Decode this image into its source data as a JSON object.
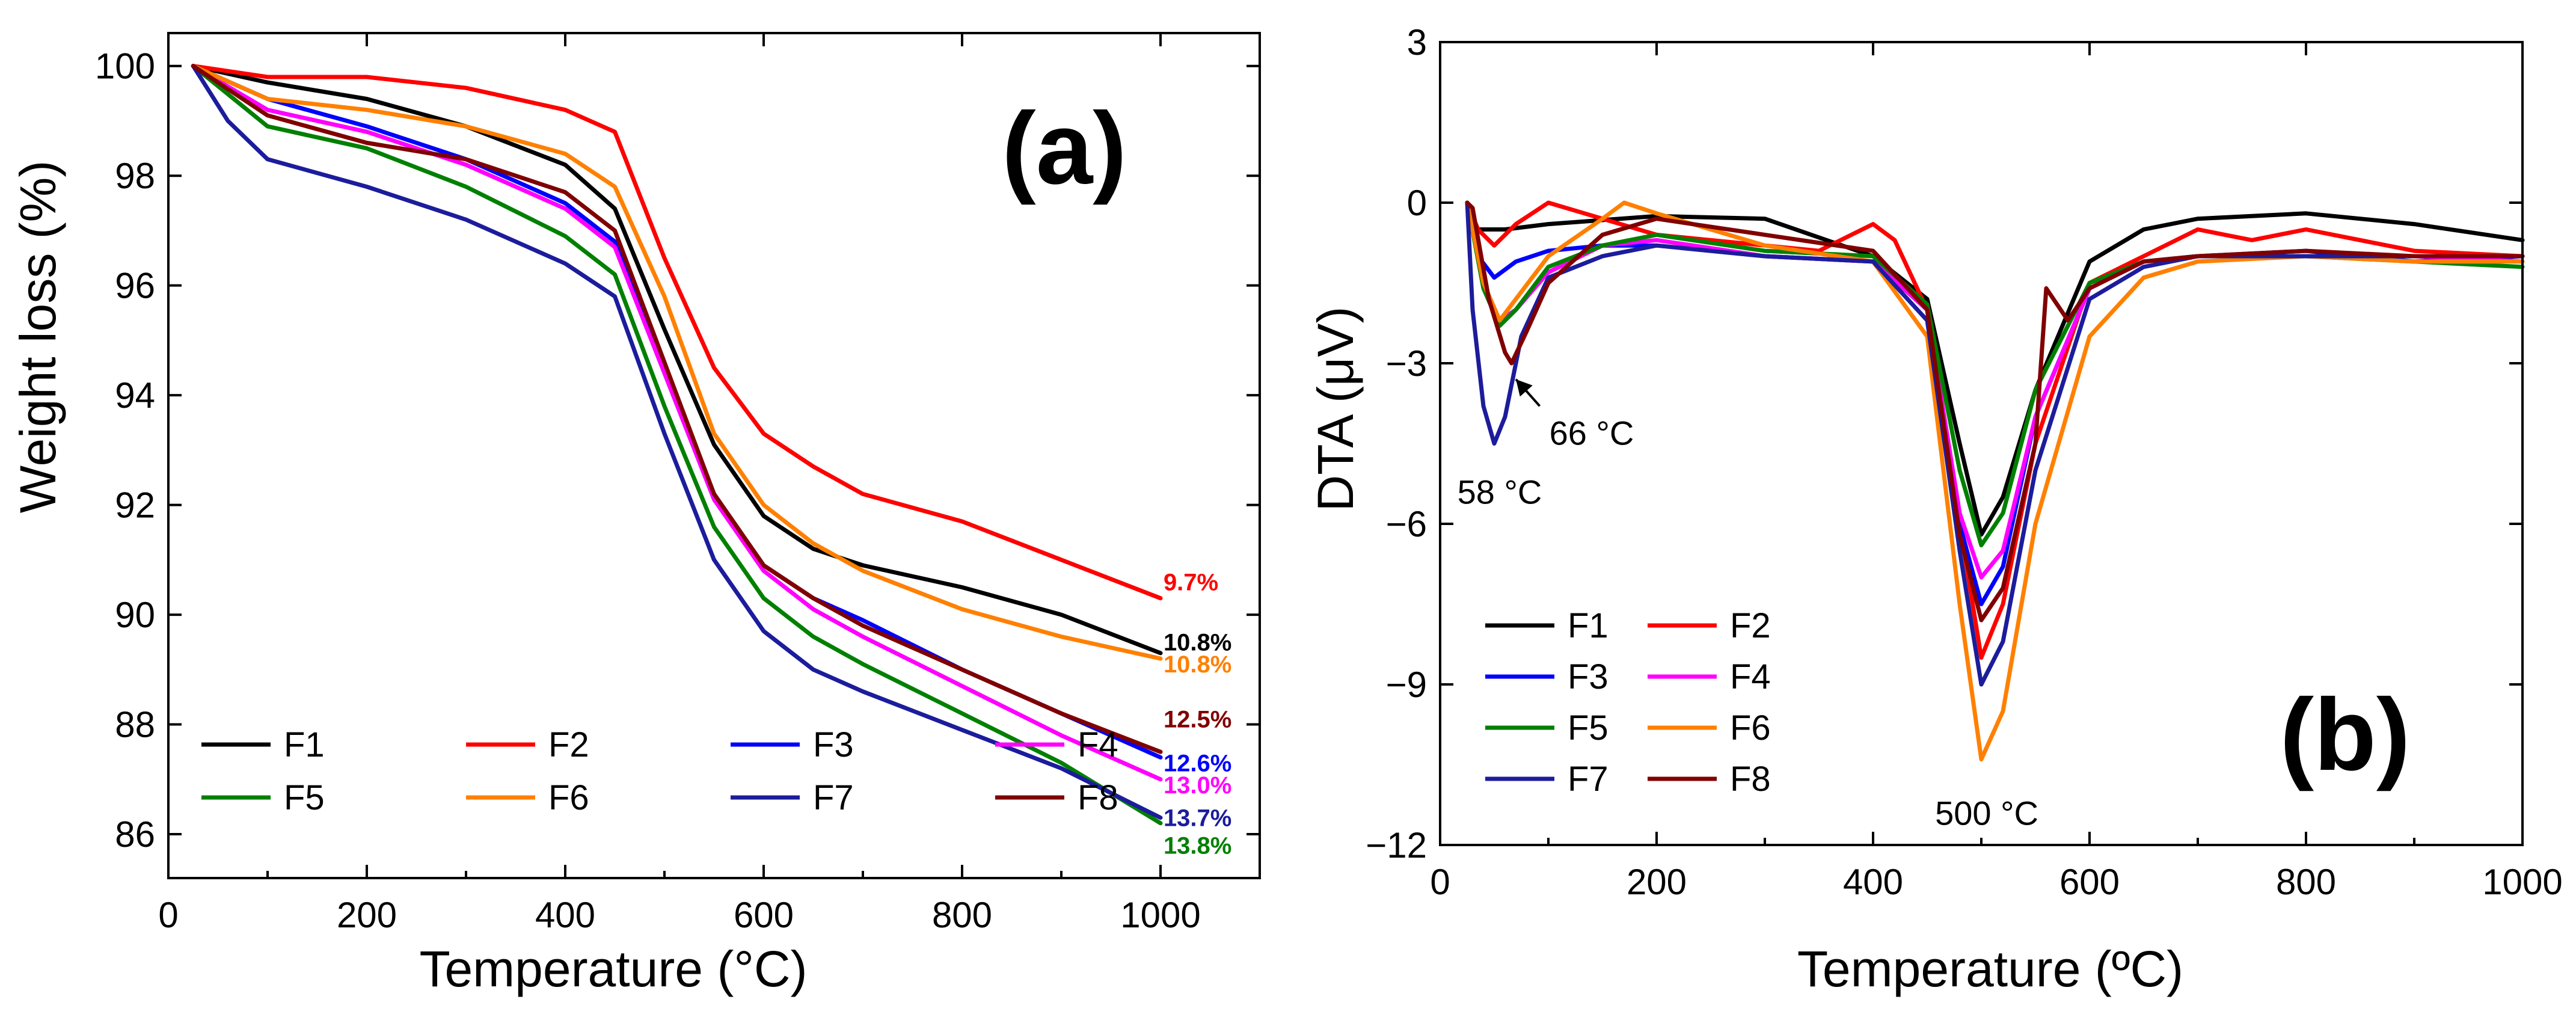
{
  "colors": {
    "F1": "#000000",
    "F2": "#ff0000",
    "F3": "#0000ff",
    "F4": "#ff00ff",
    "F5": "#008000",
    "F6": "#ff8000",
    "F7": "#1c1c9c",
    "F8": "#800000",
    "axis": "#000000"
  },
  "chart_data": [
    {
      "type": "line",
      "panel_label": "(a)",
      "xlabel": "Temperature (°C)",
      "ylabel": "Weight loss (%)",
      "xlim": [
        0,
        1100
      ],
      "ylim": [
        85.2,
        100.6
      ],
      "xticks": [
        0,
        200,
        400,
        600,
        800,
        1000
      ],
      "yticks": [
        86,
        88,
        90,
        92,
        94,
        96,
        98,
        100
      ],
      "legend_position": "bottom-left",
      "legend_rows": [
        [
          "F1",
          "F2",
          "F3",
          "F4"
        ],
        [
          "F5",
          "F6",
          "F7",
          "F8"
        ]
      ],
      "series": [
        {
          "name": "F1",
          "x": [
            25,
            100,
            200,
            300,
            400,
            450,
            500,
            550,
            600,
            650,
            700,
            800,
            900,
            1000
          ],
          "values": [
            100,
            99.7,
            99.4,
            98.9,
            98.2,
            97.4,
            95.2,
            93.1,
            91.8,
            91.2,
            90.9,
            90.5,
            90.0,
            89.3
          ]
        },
        {
          "name": "F2",
          "x": [
            25,
            100,
            200,
            300,
            400,
            450,
            500,
            550,
            600,
            650,
            700,
            800,
            900,
            1000
          ],
          "values": [
            100,
            99.8,
            99.8,
            99.6,
            99.2,
            98.8,
            96.5,
            94.5,
            93.3,
            92.7,
            92.2,
            91.7,
            91.0,
            90.3
          ]
        },
        {
          "name": "F3",
          "x": [
            25,
            100,
            200,
            300,
            400,
            450,
            500,
            550,
            600,
            650,
            700,
            800,
            900,
            1000
          ],
          "values": [
            100,
            99.4,
            98.9,
            98.3,
            97.5,
            96.8,
            94.5,
            92.2,
            90.9,
            90.3,
            89.9,
            89.0,
            88.2,
            87.4
          ]
        },
        {
          "name": "F4",
          "x": [
            25,
            100,
            200,
            300,
            400,
            450,
            500,
            550,
            600,
            650,
            700,
            800,
            900,
            1000
          ],
          "values": [
            100,
            99.2,
            98.8,
            98.2,
            97.4,
            96.7,
            94.4,
            92.1,
            90.8,
            90.1,
            89.6,
            88.7,
            87.8,
            87.0
          ]
        },
        {
          "name": "F5",
          "x": [
            25,
            100,
            200,
            300,
            400,
            450,
            500,
            550,
            600,
            650,
            700,
            800,
            900,
            1000
          ],
          "values": [
            100,
            98.9,
            98.5,
            97.8,
            96.9,
            96.2,
            93.8,
            91.6,
            90.3,
            89.6,
            89.1,
            88.2,
            87.3,
            86.2
          ]
        },
        {
          "name": "F6",
          "x": [
            25,
            100,
            200,
            300,
            400,
            450,
            500,
            550,
            600,
            650,
            700,
            800,
            900,
            1000
          ],
          "values": [
            100,
            99.4,
            99.2,
            98.9,
            98.4,
            97.8,
            95.8,
            93.3,
            92.0,
            91.3,
            90.8,
            90.1,
            89.6,
            89.2
          ]
        },
        {
          "name": "F7",
          "x": [
            25,
            60,
            100,
            200,
            300,
            400,
            450,
            500,
            550,
            600,
            650,
            700,
            800,
            900,
            1000
          ],
          "values": [
            100,
            99.0,
            98.3,
            97.8,
            97.2,
            96.4,
            95.8,
            93.3,
            91.0,
            89.7,
            89.0,
            88.6,
            87.9,
            87.2,
            86.3
          ]
        },
        {
          "name": "F8",
          "x": [
            25,
            100,
            200,
            300,
            400,
            450,
            500,
            550,
            600,
            650,
            700,
            800,
            900,
            1000
          ],
          "values": [
            100,
            99.1,
            98.6,
            98.3,
            97.7,
            97.0,
            94.6,
            92.2,
            90.9,
            90.3,
            89.8,
            89.0,
            88.2,
            87.5
          ]
        }
      ],
      "annotations": [
        {
          "text": "9.7%",
          "series": "F2",
          "x": 1003,
          "y": 90.6
        },
        {
          "text": "10.8%",
          "series": "F1",
          "x": 1003,
          "y": 89.5
        },
        {
          "text": "10.8%",
          "series": "F6",
          "x": 1003,
          "y": 89.1
        },
        {
          "text": "12.5%",
          "series": "F8",
          "x": 1003,
          "y": 88.1
        },
        {
          "text": "12.6%",
          "series": "F3",
          "x": 1003,
          "y": 87.3
        },
        {
          "text": "13.0%",
          "series": "F4",
          "x": 1003,
          "y": 86.9
        },
        {
          "text": "13.7%",
          "series": "F7",
          "x": 1003,
          "y": 86.3
        },
        {
          "text": "13.8%",
          "series": "F5",
          "x": 1003,
          "y": 85.8
        }
      ]
    },
    {
      "type": "line",
      "panel_label": "(b)",
      "xlabel": "Temperature (ºC)",
      "ylabel": "DTA (μV)",
      "xlim": [
        0,
        1000
      ],
      "ylim": [
        -12,
        3
      ],
      "xticks": [
        0,
        200,
        400,
        600,
        800,
        1000
      ],
      "yticks": [
        3,
        0,
        -3,
        -6,
        -9,
        -12
      ],
      "legend_position": "bottom-left",
      "legend_rows": [
        [
          "F1",
          "F2"
        ],
        [
          "F3",
          "F4"
        ],
        [
          "F5",
          "F6"
        ],
        [
          "F7",
          "F8"
        ]
      ],
      "series": [
        {
          "name": "F1",
          "x": [
            25,
            35,
            60,
            100,
            200,
            300,
            400,
            450,
            480,
            500,
            520,
            550,
            600,
            650,
            700,
            800,
            900,
            1000
          ],
          "values": [
            0,
            -0.5,
            -0.5,
            -0.4,
            -0.25,
            -0.3,
            -1.0,
            -1.8,
            -4.5,
            -6.2,
            -5.5,
            -3.5,
            -1.1,
            -0.5,
            -0.3,
            -0.2,
            -0.4,
            -0.7
          ]
        },
        {
          "name": "F2",
          "x": [
            25,
            35,
            50,
            70,
            100,
            150,
            200,
            300,
            350,
            380,
            400,
            420,
            450,
            480,
            500,
            520,
            550,
            600,
            650,
            700,
            750,
            800,
            900,
            1000
          ],
          "values": [
            0,
            -0.5,
            -0.8,
            -0.4,
            0,
            -0.3,
            -0.6,
            -0.8,
            -0.9,
            -0.6,
            -0.4,
            -0.7,
            -2.0,
            -6.0,
            -8.5,
            -7.5,
            -4.5,
            -1.5,
            -1.0,
            -0.5,
            -0.7,
            -0.5,
            -0.9,
            -1.0
          ]
        },
        {
          "name": "F3",
          "x": [
            25,
            35,
            50,
            70,
            100,
            150,
            200,
            300,
            400,
            450,
            480,
            500,
            520,
            550,
            600,
            650,
            700,
            800,
            900,
            1000
          ],
          "values": [
            0,
            -1.0,
            -1.4,
            -1.1,
            -0.9,
            -0.8,
            -0.8,
            -1.0,
            -1.1,
            -2.0,
            -6.0,
            -7.5,
            -6.8,
            -4.0,
            -1.6,
            -1.1,
            -1.0,
            -0.9,
            -1.1,
            -1.0
          ]
        },
        {
          "name": "F4",
          "x": [
            25,
            40,
            55,
            70,
            100,
            150,
            200,
            300,
            400,
            450,
            480,
            500,
            520,
            550,
            600,
            650,
            700,
            800,
            900,
            1000
          ],
          "values": [
            0,
            -1.5,
            -2.2,
            -2.0,
            -1.3,
            -0.8,
            -0.7,
            -1.0,
            -1.1,
            -2.0,
            -5.8,
            -7.0,
            -6.5,
            -4.0,
            -1.6,
            -1.1,
            -1.0,
            -1.0,
            -1.0,
            -1.1
          ]
        },
        {
          "name": "F5",
          "x": [
            25,
            40,
            55,
            70,
            100,
            150,
            200,
            300,
            400,
            450,
            480,
            500,
            520,
            550,
            600,
            650,
            700,
            800,
            900,
            1000
          ],
          "values": [
            0,
            -1.6,
            -2.3,
            -2.0,
            -1.2,
            -0.8,
            -0.6,
            -0.9,
            -1.0,
            -1.9,
            -5.0,
            -6.4,
            -5.8,
            -3.5,
            -1.5,
            -1.1,
            -1.0,
            -1.0,
            -1.1,
            -1.2
          ]
        },
        {
          "name": "F6",
          "x": [
            25,
            40,
            55,
            70,
            100,
            150,
            170,
            200,
            300,
            400,
            450,
            480,
            500,
            520,
            550,
            600,
            650,
            700,
            800,
            900,
            1000
          ],
          "values": [
            0,
            -1.5,
            -2.2,
            -1.8,
            -1.0,
            -0.3,
            0,
            -0.2,
            -0.8,
            -1.1,
            -2.5,
            -7.5,
            -10.4,
            -9.5,
            -6.0,
            -2.5,
            -1.4,
            -1.1,
            -1.0,
            -1.1,
            -1.1
          ]
        },
        {
          "name": "F7",
          "x": [
            25,
            30,
            40,
            50,
            60,
            75,
            100,
            150,
            200,
            300,
            400,
            450,
            480,
            500,
            520,
            550,
            600,
            650,
            700,
            800,
            900,
            1000
          ],
          "values": [
            0,
            -2.0,
            -3.8,
            -4.5,
            -4.0,
            -2.5,
            -1.4,
            -1.0,
            -0.8,
            -1.0,
            -1.1,
            -2.2,
            -6.5,
            -9.0,
            -8.2,
            -5.0,
            -1.8,
            -1.2,
            -1.0,
            -1.0,
            -1.0,
            -1.0
          ]
        },
        {
          "name": "F8",
          "x": [
            25,
            30,
            45,
            60,
            66,
            80,
            100,
            150,
            200,
            300,
            400,
            450,
            480,
            500,
            520,
            550,
            560,
            580,
            600,
            650,
            700,
            800,
            900,
            1000
          ],
          "values": [
            0,
            -0.1,
            -1.8,
            -2.8,
            -3.0,
            -2.4,
            -1.5,
            -0.6,
            -0.3,
            -0.6,
            -0.9,
            -2.0,
            -6.2,
            -7.8,
            -7.2,
            -4.5,
            -1.6,
            -2.2,
            -1.6,
            -1.1,
            -1.0,
            -0.9,
            -1.0,
            -1.0
          ]
        }
      ],
      "annotations": [
        {
          "text": "58 °C",
          "x": 55,
          "y": -5.4
        },
        {
          "text": "66 °C",
          "x": 140,
          "y": -4.3
        },
        {
          "text": "500 °C",
          "x": 505,
          "y": -11.4
        }
      ],
      "arrow": {
        "from_x": 92,
        "from_y": -3.8,
        "to_x": 70,
        "to_y": -3.3
      }
    }
  ]
}
